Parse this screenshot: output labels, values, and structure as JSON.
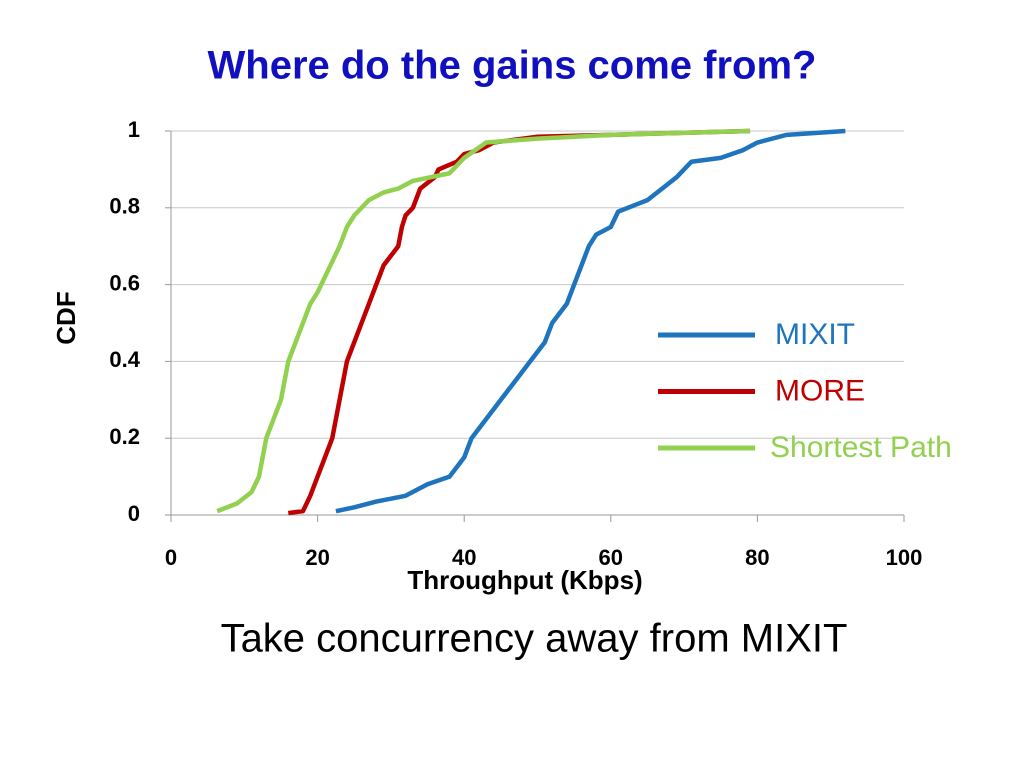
{
  "title": "Where do the gains come from?",
  "caption": "Take concurrency away from MIXIT",
  "chart_data": {
    "type": "line",
    "xlabel": "Throughput (Kbps)",
    "ylabel": "CDF",
    "xlim": [
      0,
      100
    ],
    "xticks": [
      0,
      20,
      40,
      60,
      80,
      100
    ],
    "ylim": [
      0,
      1
    ],
    "yticks": [
      0,
      0.2,
      0.4,
      0.6,
      0.8,
      1
    ],
    "grid": true,
    "legend": "right",
    "series": [
      {
        "name": "MIXIT",
        "color": "#1f74be",
        "x": [
          22.5,
          25,
          28,
          32,
          35,
          38,
          40,
          41,
          43,
          45,
          47,
          49,
          51,
          52,
          54,
          55,
          56,
          57,
          58,
          60,
          61,
          65,
          67,
          69,
          71,
          75,
          78,
          80,
          84,
          92
        ],
        "values": [
          0.01,
          0.02,
          0.035,
          0.05,
          0.08,
          0.1,
          0.15,
          0.2,
          0.25,
          0.3,
          0.35,
          0.4,
          0.45,
          0.5,
          0.55,
          0.6,
          0.65,
          0.7,
          0.73,
          0.75,
          0.79,
          0.82,
          0.85,
          0.88,
          0.92,
          0.93,
          0.95,
          0.97,
          0.99,
          1
        ]
      },
      {
        "name": "MORE",
        "color": "#c00000",
        "x": [
          16,
          18,
          19,
          20,
          21,
          22,
          23,
          24,
          25,
          26,
          27,
          28,
          29,
          31,
          31.5,
          32,
          33,
          34,
          36,
          36.5,
          39,
          40,
          42,
          44,
          50,
          60,
          79
        ],
        "values": [
          0.005,
          0.01,
          0.05,
          0.1,
          0.15,
          0.2,
          0.3,
          0.4,
          0.45,
          0.5,
          0.55,
          0.6,
          0.65,
          0.7,
          0.75,
          0.78,
          0.8,
          0.85,
          0.88,
          0.9,
          0.92,
          0.94,
          0.95,
          0.97,
          0.985,
          0.99,
          1
        ]
      },
      {
        "name": "Shortest Path",
        "color": "#92d050",
        "x": [
          6.3,
          9,
          11,
          12,
          12.5,
          13,
          14,
          15,
          15.5,
          16,
          17,
          18,
          19,
          20,
          21,
          22,
          23,
          24,
          25,
          27,
          29,
          31,
          33,
          38,
          40,
          43,
          50,
          60,
          79
        ],
        "values": [
          0.01,
          0.03,
          0.06,
          0.1,
          0.15,
          0.2,
          0.25,
          0.3,
          0.35,
          0.4,
          0.45,
          0.5,
          0.55,
          0.58,
          0.62,
          0.66,
          0.7,
          0.75,
          0.78,
          0.82,
          0.84,
          0.85,
          0.87,
          0.89,
          0.93,
          0.97,
          0.98,
          0.99,
          1
        ]
      }
    ]
  }
}
